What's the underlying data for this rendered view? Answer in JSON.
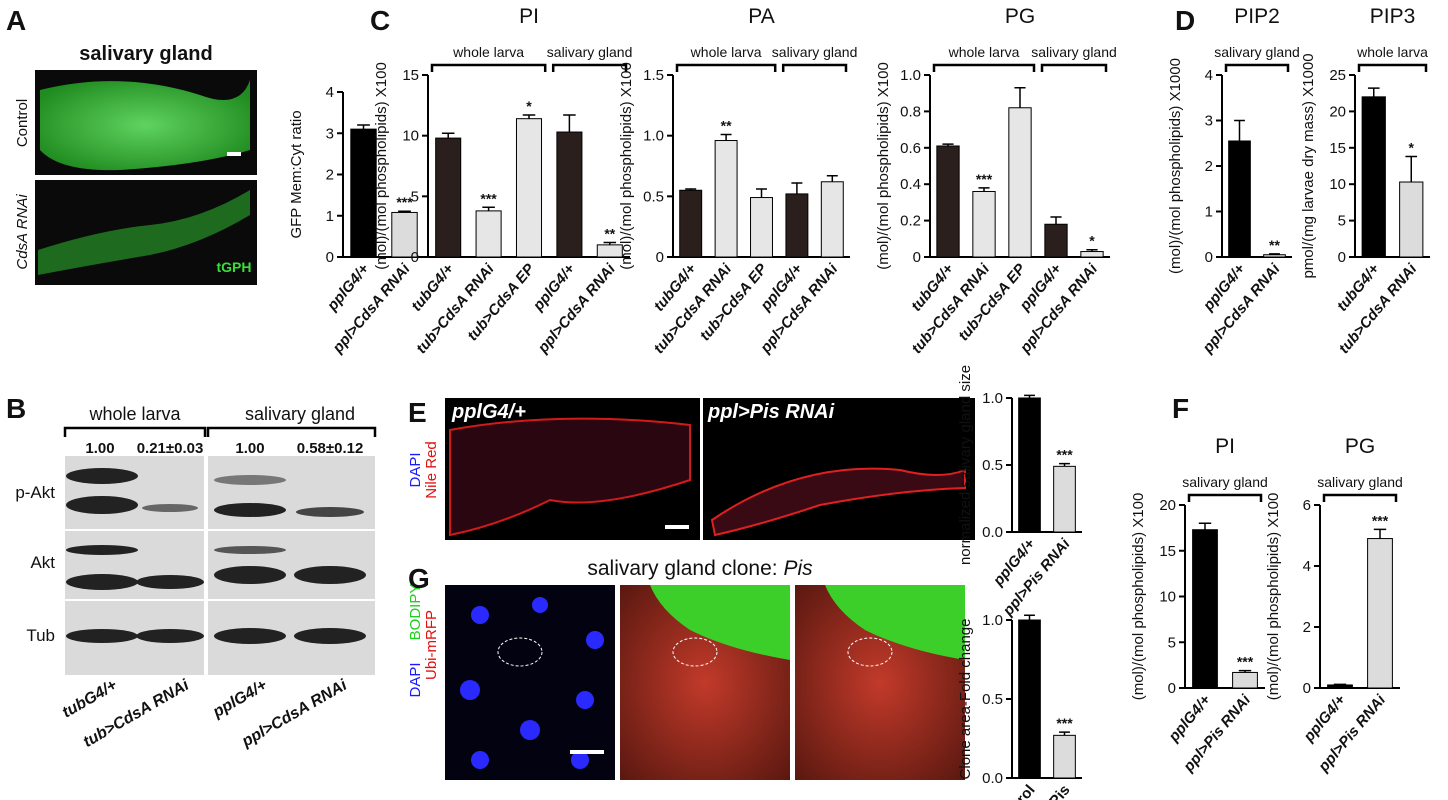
{
  "panels": {
    "letters": [
      "A",
      "B",
      "C",
      "D",
      "E",
      "F",
      "G"
    ],
    "a": {
      "title": "salivary gland",
      "row1": "Control",
      "row2": "CdsA RNAi",
      "marker": "tGPH"
    },
    "b": {
      "groups": [
        "whole larva",
        "salivary gland"
      ],
      "quant": [
        "1.00",
        "0.21±0.03",
        "1.00",
        "0.58±0.12"
      ],
      "rows": [
        "p-Akt",
        "Akt",
        "Tub"
      ],
      "lanes": [
        "tubG4/+",
        "tub>CdsA RNAi",
        "pplG4/+",
        "ppl>CdsA RNAi"
      ]
    },
    "e": {
      "left": "pplG4/+",
      "right": "ppl>Pis RNAi",
      "stain1": "DAPI",
      "stain2": "Nile Red"
    },
    "g": {
      "title": "salivary gland clone: ",
      "gene": "Pis",
      "stain1": "DAPI",
      "stain2": "BODIPY",
      "stain3": "Ubi-mRFP"
    }
  },
  "chart_data": [
    {
      "type": "bar",
      "ylabel": "GFP Mem:Cyt ratio",
      "categories": [
        "pplG4/+",
        "ppl>CdsA RNAi"
      ],
      "values": [
        3.1,
        1.08
      ],
      "errors": [
        0.1,
        0.03
      ],
      "significance": [
        null,
        "***"
      ],
      "colors": [
        "#000000",
        "#dcdcdc"
      ],
      "ylim": [
        0,
        4
      ],
      "yticks": [
        0,
        1,
        2,
        3,
        4
      ]
    },
    {
      "type": "bar",
      "title": "PI",
      "ylabel": "(mol)/(mol phospholipids) X100",
      "groups": [
        "whole larva",
        "salivary gland"
      ],
      "categories": [
        "tubG4/+",
        "tub>CdsA RNAi",
        "tub>CdsA EP",
        "pplG4/+",
        "ppl>CdsA RNAi"
      ],
      "values": [
        9.8,
        3.8,
        11.4,
        10.3,
        1.0
      ],
      "errors": [
        0.4,
        0.3,
        0.3,
        1.4,
        0.2
      ],
      "significance": [
        null,
        "***",
        "*",
        null,
        "**"
      ],
      "colors": [
        "#2b1f1e",
        "#e6e6e6",
        "#e6e6e6",
        "#2b1f1e",
        "#e6e6e6"
      ],
      "ylim": [
        0,
        15
      ],
      "yticks": [
        0,
        5,
        10,
        15
      ]
    },
    {
      "type": "bar",
      "title": "PA",
      "ylabel": "(mol)/(mol phospholipids) X100",
      "groups": [
        "whole larva",
        "salivary gland"
      ],
      "categories": [
        "tubG4/+",
        "tub>CdsA RNAi",
        "tub>CdsA EP",
        "pplG4/+",
        "ppl>CdsA RNAi"
      ],
      "values": [
        0.55,
        0.96,
        0.49,
        0.52,
        0.62
      ],
      "errors": [
        0.01,
        0.05,
        0.07,
        0.09,
        0.05
      ],
      "significance": [
        null,
        "**",
        null,
        null,
        null
      ],
      "colors": [
        "#2b1f1e",
        "#e6e6e6",
        "#e6e6e6",
        "#2b1f1e",
        "#e6e6e6"
      ],
      "ylim": [
        0,
        1.5
      ],
      "yticks": [
        0,
        0.5,
        {
          "value": 1,
          "label": "1.0"
        },
        1.5
      ]
    },
    {
      "type": "bar",
      "title": "PG",
      "ylabel": "(mol)/(mol phospholipids) X100",
      "groups": [
        "whole larva",
        "salivary gland"
      ],
      "categories": [
        "tubG4/+",
        "tub>CdsA RNAi",
        "tub>CdsA EP",
        "pplG4/+",
        "ppl>CdsA RNAi"
      ],
      "values": [
        0.61,
        0.36,
        0.82,
        0.18,
        0.03
      ],
      "errors": [
        0.01,
        0.02,
        0.11,
        0.04,
        0.01
      ],
      "significance": [
        null,
        "***",
        null,
        null,
        "*"
      ],
      "colors": [
        "#2b1f1e",
        "#e6e6e6",
        "#e6e6e6",
        "#2b1f1e",
        "#e6e6e6"
      ],
      "ylim": [
        0,
        1
      ],
      "yticks": [
        0,
        0.2,
        0.4,
        0.6,
        0.8,
        {
          "value": 1,
          "label": "1.0"
        }
      ]
    },
    {
      "type": "bar",
      "title": "PIP2",
      "ylabel": "(mol)/(mol phospholipids) X1000",
      "groups": [
        "salivary gland"
      ],
      "categories": [
        "pplG4/+",
        "ppl>CdsA RNAi"
      ],
      "values": [
        2.55,
        0.05
      ],
      "errors": [
        0.45,
        0.02
      ],
      "significance": [
        null,
        "**"
      ],
      "colors": [
        "#000000",
        "#dcdcdc"
      ],
      "ylim": [
        0,
        4
      ],
      "yticks": [
        0,
        1,
        2,
        3,
        4
      ]
    },
    {
      "type": "bar",
      "title": "PIP3",
      "ylabel": "pmol/(mg larvae dry mass) X1000",
      "groups": [
        "whole larva"
      ],
      "categories": [
        "tubG4/+",
        "tub>CdsA RNAi"
      ],
      "values": [
        22,
        10.3
      ],
      "errors": [
        1.2,
        3.5
      ],
      "significance": [
        null,
        "*"
      ],
      "colors": [
        "#000000",
        "#dcdcdc"
      ],
      "ylim": [
        0,
        25
      ],
      "yticks": [
        0,
        5,
        10,
        15,
        20,
        25
      ]
    },
    {
      "type": "bar",
      "ylabel": "normalized salivary gland size",
      "categories": [
        "pplG4/+",
        "ppl>Pis RNAi"
      ],
      "values": [
        1.0,
        0.49
      ],
      "errors": [
        0.02,
        0.02
      ],
      "significance": [
        null,
        "***"
      ],
      "colors": [
        "#000000",
        "#dcdcdc"
      ],
      "ylim": [
        0,
        1
      ],
      "yticks": [
        {
          "value": 0,
          "label": "0.0"
        },
        0.5,
        {
          "value": 1,
          "label": "1.0"
        }
      ]
    },
    {
      "type": "bar",
      "ylabel": "Clone area-Fold change",
      "categories": [
        "Control",
        "Pis"
      ],
      "values": [
        1.0,
        0.27
      ],
      "errors": [
        0.03,
        0.02
      ],
      "significance": [
        null,
        "***"
      ],
      "colors": [
        "#000000",
        "#dcdcdc"
      ],
      "ylim": [
        0,
        1
      ],
      "yticks": [
        {
          "value": 0,
          "label": "0.0"
        },
        0.5,
        {
          "value": 1,
          "label": "1.0"
        }
      ]
    },
    {
      "type": "bar",
      "title": "PI",
      "ylabel": "(mol)/(mol phospholipids) X100",
      "groups": [
        "salivary gland"
      ],
      "categories": [
        "pplG4/+",
        "ppl>Pis RNAi"
      ],
      "values": [
        17.3,
        1.7
      ],
      "errors": [
        0.7,
        0.2
      ],
      "significance": [
        null,
        "***"
      ],
      "colors": [
        "#000000",
        "#dcdcdc"
      ],
      "ylim": [
        0,
        20
      ],
      "yticks": [
        0,
        5,
        10,
        15,
        20
      ]
    },
    {
      "type": "bar",
      "title": "PG",
      "ylabel": "(mol)/(mol phospholipids) X100",
      "groups": [
        "salivary gland"
      ],
      "categories": [
        "pplG4/+",
        "ppl>Pis RNAi"
      ],
      "values": [
        0.1,
        4.9
      ],
      "errors": [
        0.02,
        0.3
      ],
      "significance": [
        null,
        "***"
      ],
      "colors": [
        "#000000",
        "#dcdcdc"
      ],
      "ylim": [
        0,
        6
      ],
      "yticks": [
        0,
        2,
        4,
        6
      ]
    }
  ]
}
